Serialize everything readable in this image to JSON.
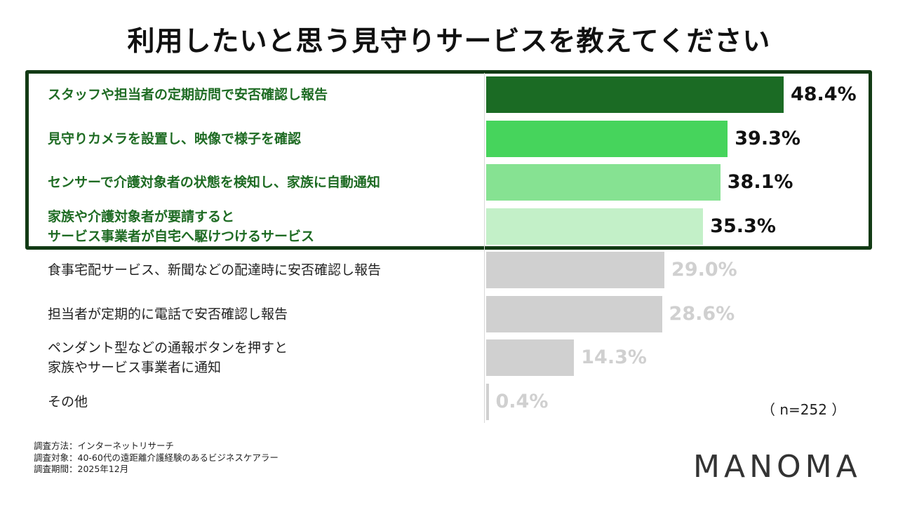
{
  "title": "利用したいと思う見守りサービスを教えてください",
  "sample_size": "（ n=252 ）",
  "notes": [
    "調査方法：インターネットリサーチ",
    "調査対象：40-60代の遠距離介護経験のあるビジネスケアラー",
    "調査期間：2025年12月"
  ],
  "logo": "MANOMA",
  "colors": {
    "box_border": "#123a14",
    "highlight_text": "#1e6b23",
    "gray_bar": "#d0d0d0"
  },
  "chart_data": {
    "type": "bar",
    "orientation": "horizontal",
    "title": "利用したいと思う見守りサービスを教えてください",
    "categories": [
      "スタッフや担当者の定期訪問で安否確認し報告",
      "見守りカメラを設置し、映像で様子を確認",
      "センサーで介護対象者の状態を検知し、家族に自動通知",
      "家族や介護対象者が要請すると\nサービス事業者が自宅へ駆けつけるサービス",
      "食事宅配サービス、新聞などの配達時に安否確認し報告",
      "担当者が定期的に電話で安否確認し報告",
      "ペンダント型などの通報ボタンを押すと\n家族やサービス事業者に通知",
      "その他"
    ],
    "values": [
      48.4,
      39.3,
      38.1,
      35.3,
      29.0,
      28.6,
      14.3,
      0.4
    ],
    "value_labels": [
      "48.4%",
      "39.3%",
      "38.1%",
      "35.3%",
      "29.0%",
      "28.6%",
      "14.3%",
      "0.4%"
    ],
    "highlighted": [
      true,
      true,
      true,
      true,
      false,
      false,
      false,
      false
    ],
    "bar_colors": [
      "#1b6b24",
      "#46d45c",
      "#86e292",
      "#c3f0c8",
      "#d0d0d0",
      "#d0d0d0",
      "#d0d0d0",
      "#d0d0d0"
    ],
    "unit": "%",
    "xlim": [
      0,
      50
    ]
  }
}
